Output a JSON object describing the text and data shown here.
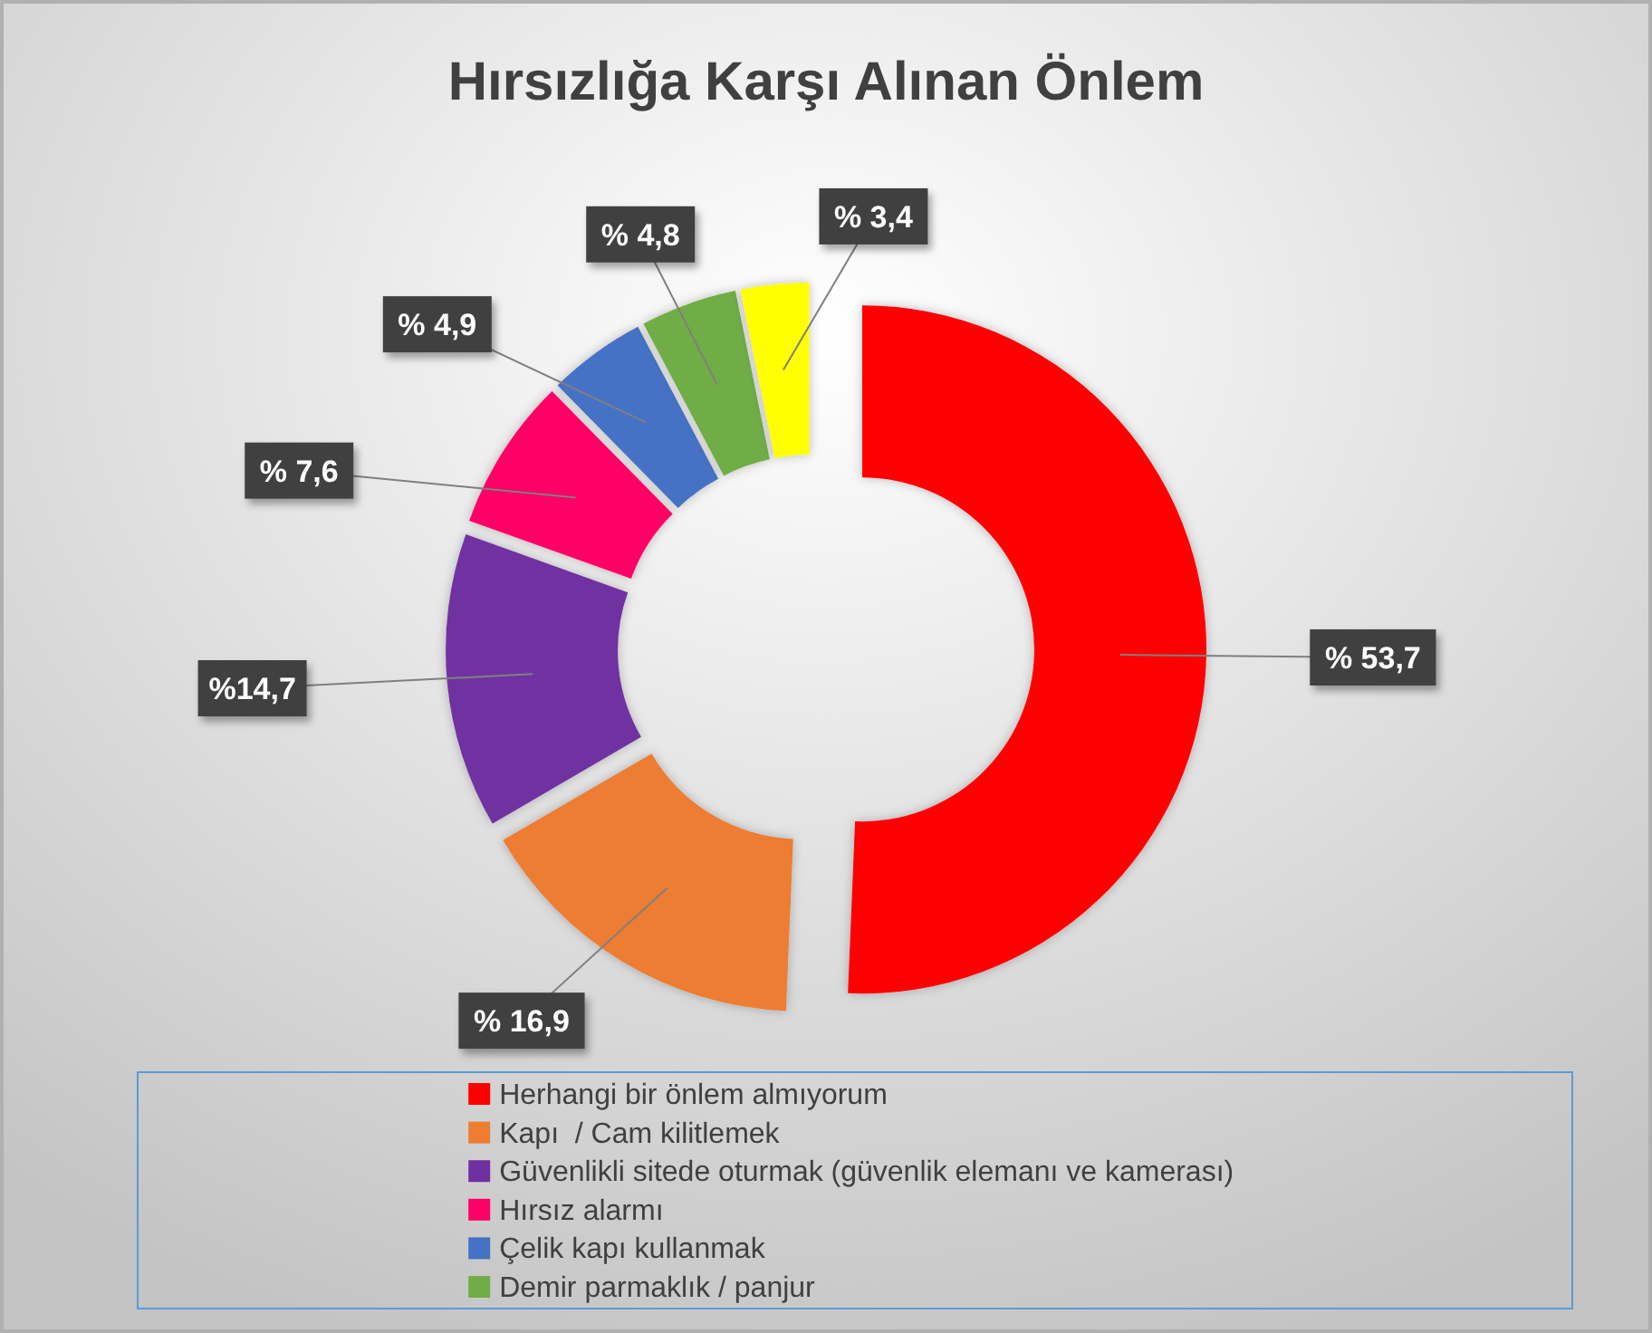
{
  "chart_data": {
    "type": "donut",
    "title": "Hırsızlığa Karşı Alınan Önlem",
    "categories": [
      "Herhangi bir önlem almıyorum",
      "Kapı  / Cam kilitlemek",
      "Güvenlikli sitede oturmak (güvenlik elemanı ve kamerası)",
      "Hırsız alarmı",
      "Çelik kapı kullanmak",
      "Demir parmaklık / panjur",
      null
    ],
    "values": [
      53.7,
      16.9,
      14.7,
      7.6,
      4.9,
      4.8,
      3.4
    ],
    "colors": [
      "#ff0000",
      "#ed7d31",
      "#7030a0",
      "#ff0066",
      "#4472c4",
      "#70ad47",
      "#ffff00"
    ],
    "value_labels": [
      "% 53,7",
      "% 16,9",
      "%14,7",
      "% 7,6",
      "% 4,9",
      "% 4,8",
      "% 3,4"
    ],
    "legend": "bottom"
  }
}
